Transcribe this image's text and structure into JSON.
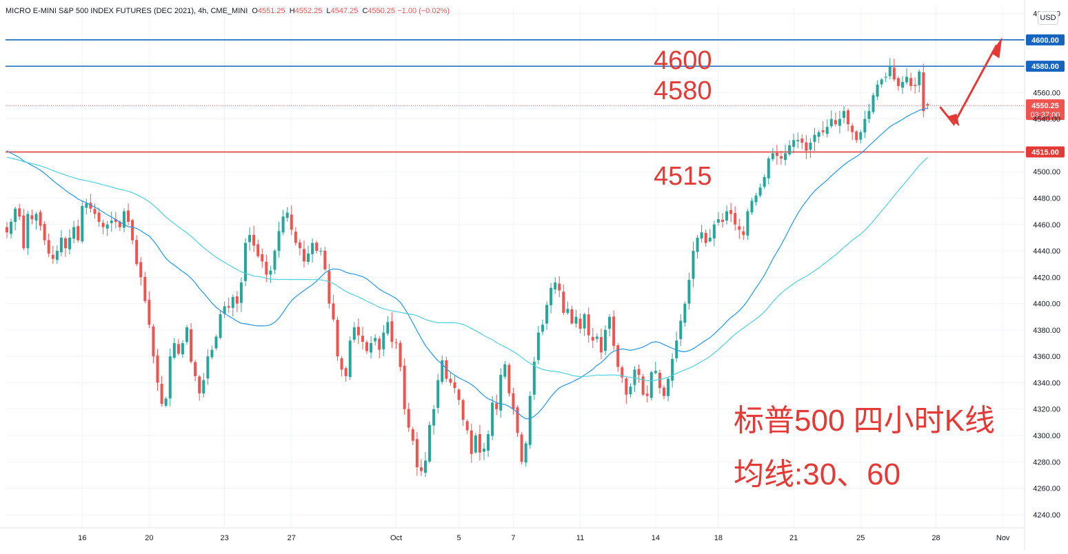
{
  "header": {
    "symbol": "MICRO E-MINI S&P 500 INDEX FUTURES (DEC 2021), 4h, CME_MINI",
    "open_label": "O",
    "open": "4551.25",
    "high_label": "H",
    "high": "4552.25",
    "low_label": "L",
    "low": "4547.25",
    "close_label": "C",
    "close": "4550.25",
    "change": "−1.00 (−0.02%)"
  },
  "currency": "USD",
  "annotations": {
    "level_4600": "4600",
    "level_4580": "4580",
    "level_4515": "4515",
    "title_line1": "标普500 四小时K线",
    "title_line2": "均线:30、60"
  },
  "colors": {
    "up": "#26a69a",
    "down": "#ef5350",
    "ma_fast": "#2196f3",
    "ma_slow": "#4dd0e1",
    "blue_level": "#1565c0",
    "red_level": "#e53935",
    "annotation_red": "#e53935"
  },
  "chart_data": {
    "type": "candlestick",
    "yaxis_ticks": [
      4240,
      4260,
      4280,
      4300,
      4320,
      4340,
      4360,
      4380,
      4400,
      4420,
      4440,
      4460,
      4480,
      4500,
      4520,
      4540,
      4560,
      4580,
      4600,
      4620
    ],
    "ylim": [
      4230,
      4625
    ],
    "xaxis_labels": [
      {
        "label": "16",
        "bar": 18
      },
      {
        "label": "20",
        "bar": 34
      },
      {
        "label": "23",
        "bar": 52
      },
      {
        "label": "27",
        "bar": 68
      },
      {
        "label": "Oct",
        "bar": 93
      },
      {
        "label": "5",
        "bar": 108
      },
      {
        "label": "7",
        "bar": 121
      },
      {
        "label": "11",
        "bar": 137
      },
      {
        "label": "14",
        "bar": 155
      },
      {
        "label": "18",
        "bar": 170
      },
      {
        "label": "21",
        "bar": 188
      },
      {
        "label": "25",
        "bar": 204
      },
      {
        "label": "28",
        "bar": 222
      },
      {
        "label": "Nov",
        "bar": 238
      }
    ],
    "horizontal_levels": [
      {
        "value": 4600,
        "color": "blue",
        "label": "4600.00"
      },
      {
        "value": 4580,
        "color": "blue",
        "label": "4580.00"
      },
      {
        "value": 4515,
        "color": "red",
        "label": "4515.00"
      }
    ],
    "last_price": {
      "value": 4550.25,
      "label": "4550.25",
      "countdown": "03:37:00"
    },
    "moving_averages": [
      {
        "period": 30,
        "color": "blue"
      },
      {
        "period": 60,
        "color": "cyan"
      }
    ],
    "closes": [
      4454,
      4462,
      4472,
      4466,
      4442,
      4468,
      4464,
      4468,
      4459,
      4448,
      4438,
      4434,
      4440,
      4450,
      4442,
      4450,
      4458,
      4448,
      4474,
      4476,
      4472,
      4468,
      4462,
      4458,
      4460,
      4463,
      4462,
      4458,
      4470,
      4462,
      4448,
      4430,
      4420,
      4402,
      4384,
      4360,
      4340,
      4324,
      4328,
      4360,
      4370,
      4362,
      4370,
      4382,
      4356,
      4345,
      4332,
      4342,
      4360,
      4365,
      4375,
      4392,
      4398,
      4397,
      4405,
      4400,
      4416,
      4446,
      4452,
      4444,
      4436,
      4432,
      4422,
      4425,
      4440,
      4455,
      4466,
      4469,
      4456,
      4446,
      4442,
      4432,
      4438,
      4446,
      4440,
      4440,
      4426,
      4400,
      4388,
      4360,
      4350,
      4345,
      4372,
      4382,
      4376,
      4371,
      4364,
      4370,
      4374,
      4365,
      4378,
      4386,
      4371,
      4370,
      4352,
      4320,
      4306,
      4296,
      4276,
      4273,
      4281,
      4308,
      4320,
      4342,
      4357,
      4343,
      4340,
      4336,
      4327,
      4312,
      4304,
      4286,
      4300,
      4287,
      4290,
      4301,
      4325,
      4320,
      4346,
      4354,
      4332,
      4320,
      4302,
      4280,
      4294,
      4330,
      4356,
      4378,
      4384,
      4399,
      4412,
      4416,
      4410,
      4393,
      4396,
      4385,
      4390,
      4381,
      4392,
      4376,
      4372,
      4375,
      4363,
      4380,
      4390,
      4368,
      4352,
      4344,
      4331,
      4337,
      4350,
      4346,
      4331,
      4330,
      4348,
      4349,
      4336,
      4330,
      4343,
      4358,
      4372,
      4387,
      4400,
      4418,
      4440,
      4450,
      4454,
      4446,
      4450,
      4460,
      4464,
      4462,
      4470,
      4468,
      4460,
      4456,
      4452,
      4470,
      4478,
      4482,
      4488,
      4496,
      4510,
      4514,
      4512,
      4510,
      4514,
      4520,
      4524,
      4524,
      4522,
      4516,
      4522,
      4528,
      4530,
      4530,
      4534,
      4540,
      4536,
      4540,
      4546,
      4536,
      4530,
      4524,
      4530,
      4540,
      4546,
      4558,
      4566,
      4570,
      4572,
      4580,
      4570,
      4565,
      4568,
      4572,
      4565,
      4565,
      4576,
      4546,
      4550.25
    ]
  }
}
